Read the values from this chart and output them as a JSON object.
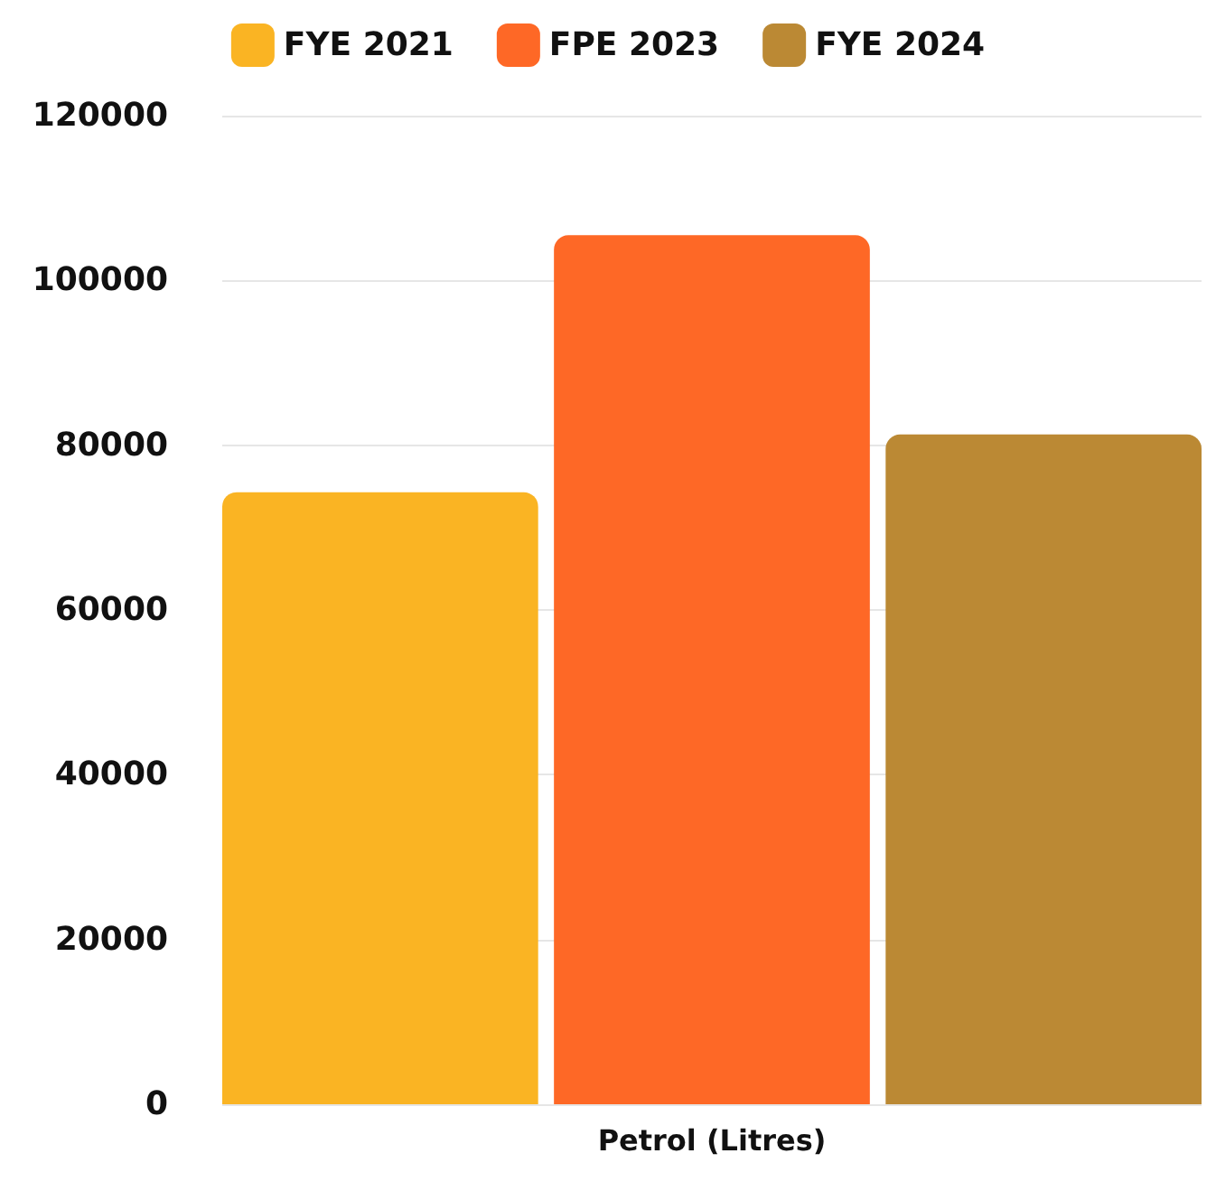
{
  "chart_data": {
    "type": "bar",
    "categories": [
      "Petrol (Litres)"
    ],
    "series": [
      {
        "name": "FYE 2021",
        "color": "#fab423",
        "values": [
          74300
        ]
      },
      {
        "name": "FPE 2023",
        "color": "#fe6826",
        "values": [
          105500
        ]
      },
      {
        "name": "FYE 2024",
        "color": "#bb8934",
        "values": [
          81300
        ]
      }
    ],
    "ylim": [
      0,
      120000
    ],
    "yticks": [
      0,
      20000,
      40000,
      60000,
      80000,
      100000,
      120000
    ],
    "grid": "y",
    "legend": "top"
  }
}
